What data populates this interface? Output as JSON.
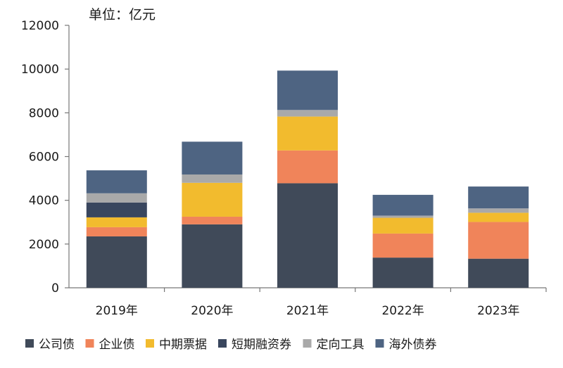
{
  "chart_data": {
    "type": "bar",
    "stacked": true,
    "unit_label": "单位：亿元",
    "categories": [
      "2019年",
      "2020年",
      "2021年",
      "2022年",
      "2023年"
    ],
    "ylim": [
      0,
      12000
    ],
    "yticks": [
      "0",
      "2000",
      "4000",
      "6000",
      "8000",
      "10000",
      "12000"
    ],
    "grid": false,
    "legend_position": "bottom",
    "series": [
      {
        "name": "公司债",
        "color": "#404a59",
        "values": [
          2350,
          2900,
          4780,
          1380,
          1330
        ]
      },
      {
        "name": "企业债",
        "color": "#f0845a",
        "values": [
          420,
          350,
          1500,
          1100,
          1680
        ]
      },
      {
        "name": "中期票据",
        "color": "#f2bb2e",
        "values": [
          450,
          1550,
          1550,
          720,
          420
        ]
      },
      {
        "name": "短期融资券",
        "color": "#39465e",
        "values": [
          680,
          0,
          0,
          0,
          0
        ]
      },
      {
        "name": "定向工具",
        "color": "#a9a9a9",
        "values": [
          420,
          380,
          300,
          100,
          200
        ]
      },
      {
        "name": "海外债券",
        "color": "#4e6482",
        "values": [
          1050,
          1500,
          1800,
          950,
          1000
        ]
      }
    ]
  }
}
